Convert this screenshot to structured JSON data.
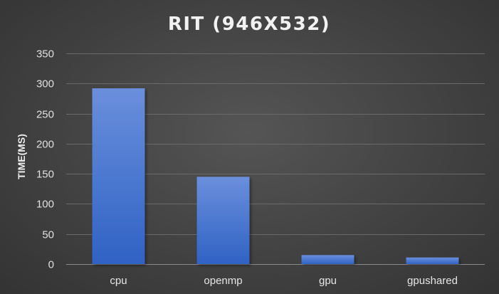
{
  "colors": {
    "bar_top": "#6a8fdc",
    "bar_bottom": "#2f62c4"
  },
  "chart_data": {
    "type": "bar",
    "title": "RIT (946X532)",
    "xlabel": "",
    "ylabel": "TIME(MS)",
    "categories": [
      "cpu",
      "openmp",
      "gpu",
      "gpushared"
    ],
    "values": [
      292,
      145,
      15,
      11
    ],
    "ylim": [
      0,
      350
    ],
    "yticks": [
      0,
      50,
      100,
      150,
      200,
      250,
      300,
      350
    ],
    "ytick_labels": [
      "0",
      "50",
      "100",
      "150",
      "200",
      "250",
      "300",
      "350"
    ],
    "grid": true,
    "legend": "none"
  }
}
